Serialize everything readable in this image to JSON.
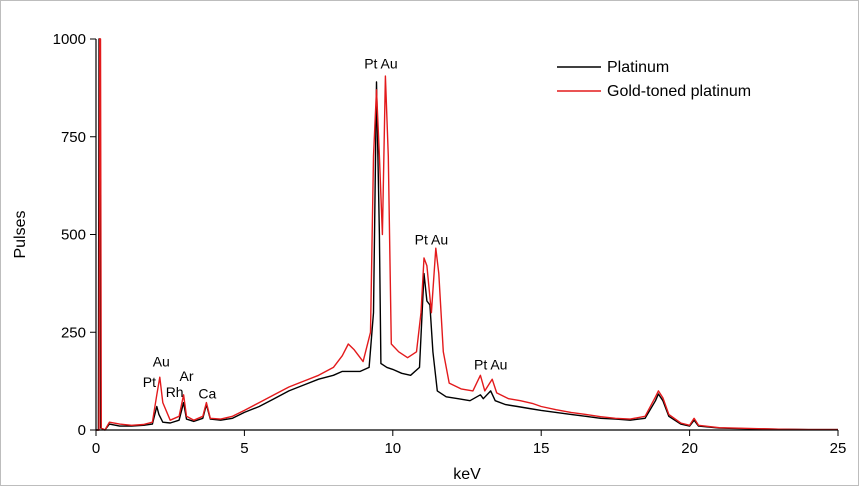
{
  "chart_data": {
    "type": "line",
    "title": "",
    "xlabel": "keV",
    "ylabel": "Pulses",
    "xlim": [
      0,
      25
    ],
    "ylim": [
      0,
      1000
    ],
    "x_ticks": [
      0,
      5,
      10,
      15,
      20,
      25
    ],
    "y_ticks": [
      0,
      250,
      500,
      750,
      1000
    ],
    "grid": false,
    "legend_position": "top-right",
    "series": [
      {
        "name": "Platinum",
        "color": "#000000",
        "points": [
          [
            0.0,
            0
          ],
          [
            0.08,
            0
          ],
          [
            0.1,
            1000
          ],
          [
            0.13,
            1000
          ],
          [
            0.16,
            5
          ],
          [
            0.3,
            0
          ],
          [
            0.45,
            15
          ],
          [
            0.8,
            10
          ],
          [
            1.2,
            10
          ],
          [
            1.6,
            12
          ],
          [
            1.9,
            15
          ],
          [
            2.05,
            60
          ],
          [
            2.12,
            40
          ],
          [
            2.25,
            20
          ],
          [
            2.5,
            18
          ],
          [
            2.8,
            25
          ],
          [
            2.95,
            70
          ],
          [
            3.05,
            28
          ],
          [
            3.3,
            22
          ],
          [
            3.6,
            30
          ],
          [
            3.72,
            65
          ],
          [
            3.85,
            28
          ],
          [
            4.2,
            25
          ],
          [
            4.6,
            30
          ],
          [
            5.0,
            45
          ],
          [
            5.5,
            60
          ],
          [
            6.0,
            80
          ],
          [
            6.5,
            100
          ],
          [
            7.0,
            115
          ],
          [
            7.5,
            130
          ],
          [
            8.0,
            140
          ],
          [
            8.3,
            150
          ],
          [
            8.6,
            150
          ],
          [
            8.9,
            150
          ],
          [
            9.2,
            160
          ],
          [
            9.35,
            300
          ],
          [
            9.45,
            890
          ],
          [
            9.55,
            500
          ],
          [
            9.6,
            170
          ],
          [
            9.8,
            160
          ],
          [
            10.0,
            155
          ],
          [
            10.3,
            145
          ],
          [
            10.6,
            140
          ],
          [
            10.9,
            160
          ],
          [
            11.05,
            400
          ],
          [
            11.15,
            330
          ],
          [
            11.25,
            320
          ],
          [
            11.35,
            200
          ],
          [
            11.5,
            100
          ],
          [
            11.8,
            85
          ],
          [
            12.2,
            80
          ],
          [
            12.6,
            75
          ],
          [
            12.95,
            90
          ],
          [
            13.05,
            80
          ],
          [
            13.3,
            100
          ],
          [
            13.45,
            75
          ],
          [
            13.8,
            65
          ],
          [
            14.2,
            60
          ],
          [
            14.6,
            55
          ],
          [
            15.0,
            50
          ],
          [
            15.5,
            45
          ],
          [
            16.0,
            40
          ],
          [
            16.5,
            35
          ],
          [
            17.0,
            30
          ],
          [
            17.5,
            28
          ],
          [
            18.0,
            25
          ],
          [
            18.5,
            30
          ],
          [
            18.85,
            75
          ],
          [
            18.95,
            92
          ],
          [
            19.1,
            75
          ],
          [
            19.3,
            35
          ],
          [
            19.7,
            15
          ],
          [
            20.0,
            10
          ],
          [
            20.15,
            25
          ],
          [
            20.3,
            10
          ],
          [
            21.0,
            5
          ],
          [
            22.0,
            3
          ],
          [
            23.0,
            2
          ],
          [
            24.0,
            1
          ],
          [
            25.0,
            1
          ]
        ]
      },
      {
        "name": "Gold-toned platinum",
        "color": "#e31a1c",
        "points": [
          [
            0.0,
            0
          ],
          [
            0.1,
            0
          ],
          [
            0.12,
            1000
          ],
          [
            0.15,
            1000
          ],
          [
            0.18,
            5
          ],
          [
            0.3,
            0
          ],
          [
            0.45,
            20
          ],
          [
            0.8,
            15
          ],
          [
            1.2,
            12
          ],
          [
            1.6,
            14
          ],
          [
            1.9,
            20
          ],
          [
            2.05,
            90
          ],
          [
            2.15,
            135
          ],
          [
            2.25,
            70
          ],
          [
            2.5,
            25
          ],
          [
            2.8,
            35
          ],
          [
            2.95,
            90
          ],
          [
            3.05,
            35
          ],
          [
            3.3,
            25
          ],
          [
            3.6,
            35
          ],
          [
            3.72,
            70
          ],
          [
            3.85,
            30
          ],
          [
            4.2,
            28
          ],
          [
            4.6,
            35
          ],
          [
            5.0,
            50
          ],
          [
            5.5,
            70
          ],
          [
            6.0,
            90
          ],
          [
            6.5,
            110
          ],
          [
            7.0,
            125
          ],
          [
            7.5,
            140
          ],
          [
            8.0,
            160
          ],
          [
            8.3,
            190
          ],
          [
            8.5,
            220
          ],
          [
            8.7,
            205
          ],
          [
            9.0,
            175
          ],
          [
            9.25,
            250
          ],
          [
            9.35,
            700
          ],
          [
            9.45,
            870
          ],
          [
            9.55,
            700
          ],
          [
            9.65,
            500
          ],
          [
            9.75,
            905
          ],
          [
            9.85,
            700
          ],
          [
            9.95,
            220
          ],
          [
            10.2,
            200
          ],
          [
            10.5,
            185
          ],
          [
            10.8,
            200
          ],
          [
            10.95,
            300
          ],
          [
            11.05,
            440
          ],
          [
            11.15,
            420
          ],
          [
            11.3,
            300
          ],
          [
            11.45,
            465
          ],
          [
            11.55,
            400
          ],
          [
            11.7,
            200
          ],
          [
            11.9,
            120
          ],
          [
            12.3,
            105
          ],
          [
            12.7,
            100
          ],
          [
            12.95,
            140
          ],
          [
            13.1,
            100
          ],
          [
            13.35,
            130
          ],
          [
            13.5,
            95
          ],
          [
            13.9,
            80
          ],
          [
            14.3,
            75
          ],
          [
            14.7,
            68
          ],
          [
            15.0,
            60
          ],
          [
            15.5,
            52
          ],
          [
            16.0,
            45
          ],
          [
            16.5,
            40
          ],
          [
            17.0,
            34
          ],
          [
            17.5,
            30
          ],
          [
            18.0,
            28
          ],
          [
            18.5,
            35
          ],
          [
            18.85,
            85
          ],
          [
            18.95,
            100
          ],
          [
            19.1,
            82
          ],
          [
            19.3,
            40
          ],
          [
            19.7,
            18
          ],
          [
            20.0,
            12
          ],
          [
            20.15,
            30
          ],
          [
            20.3,
            12
          ],
          [
            21.0,
            6
          ],
          [
            22.0,
            4
          ],
          [
            23.0,
            2
          ],
          [
            24.0,
            1
          ],
          [
            25.0,
            1
          ]
        ]
      }
    ],
    "annotations": [
      {
        "text": "Pt Au",
        "x": 9.6,
        "y": 925
      },
      {
        "text": "Pt Au",
        "x": 11.3,
        "y": 475
      },
      {
        "text": "Pt Au",
        "x": 13.3,
        "y": 155
      },
      {
        "text": "Au",
        "x": 2.2,
        "y": 162
      },
      {
        "text": "Pt",
        "x": 1.8,
        "y": 110
      },
      {
        "text": "Rh",
        "x": 2.65,
        "y": 85
      },
      {
        "text": "Ar",
        "x": 3.05,
        "y": 125
      },
      {
        "text": "Ca",
        "x": 3.75,
        "y": 80
      }
    ]
  }
}
